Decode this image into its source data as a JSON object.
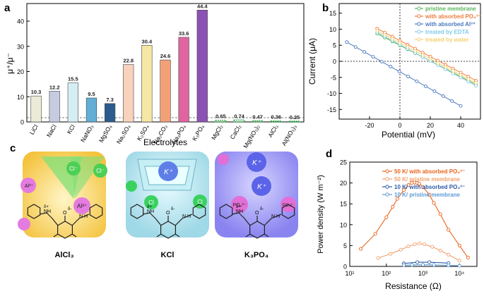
{
  "figure": {
    "labels": {
      "a": "a",
      "b": "b",
      "c": "c",
      "d": "d"
    }
  },
  "panel_c": {
    "tiles": [
      {
        "caption": "AlCl₃",
        "labels": [
          "Cl⁻",
          "Cl⁻",
          "Al³⁺",
          "Al³⁺"
        ]
      },
      {
        "caption": "KCl",
        "labels": [
          "K⁺",
          "Cl",
          "Cl"
        ]
      },
      {
        "caption": "K₃PO₄",
        "labels": [
          "K⁺",
          "K⁺",
          "PO₄³⁻",
          "PO₄³⁻"
        ]
      }
    ],
    "molecule": {
      "delta_plus": "δ+",
      "delta_minus": "δ-",
      "nh": "NH",
      "n": "N",
      "h": "H",
      "o": "O"
    }
  },
  "chart_data": [
    {
      "type": "bar",
      "title": "",
      "xlabel": "Electrolytes",
      "ylabel": "μ⁺/μ⁻",
      "ylim": [
        0,
        47
      ],
      "yticks": [
        0,
        10,
        20,
        30,
        40
      ],
      "reference_line": 1,
      "categories": [
        "LiCl",
        "NaCl",
        "KCl",
        "NaNO₃",
        "MgSO₄",
        "Na₂SO₄",
        "K₂SO₄",
        "Na₂CO₃",
        "Na₃PO₄",
        "K₃PO₄",
        "MgCl₂",
        "CaCl₂",
        "Mg(NO₃)₂",
        "AlCl₃",
        "Al(NO₃)₃"
      ],
      "values": [
        10.3,
        12.2,
        15.5,
        9.5,
        7.3,
        22.8,
        30.4,
        24.6,
        33.6,
        44.4,
        0.65,
        0.74,
        0.47,
        0.36,
        0.25
      ],
      "value_labels": [
        "10.3",
        "12.2",
        "15.5",
        "9.5",
        "7.3",
        "22.8",
        "30.4",
        "24.6",
        "33.6",
        "44.4",
        "0.65",
        "0.74",
        "0.47",
        "0.36",
        "0.25"
      ],
      "colors": [
        "#ecebd8",
        "#c7cbe1",
        "#d5eef4",
        "#62aed6",
        "#2d5b8e",
        "#f9d2bd",
        "#f6e7a4",
        "#f2a177",
        "#e064a0",
        "#8c52b3",
        "#3ea753",
        "#3ea753",
        "#3ea753",
        "#3ea753",
        "#3ea753"
      ]
    },
    {
      "type": "line",
      "title": "",
      "xlabel": "Potential (mV)",
      "ylabel": "Current (μA)",
      "xlim": [
        -40,
        53
      ],
      "ylim": [
        -18,
        18
      ],
      "xticks": [
        -20,
        0,
        20,
        40
      ],
      "yticks": [
        -15,
        -10,
        -5,
        0,
        5,
        10,
        15
      ],
      "legend": "top-right",
      "series": [
        {
          "name": "pristine membrane",
          "color": "#5ab55a",
          "x": [
            -15,
            50
          ],
          "y": [
            8.6,
            -7.2
          ]
        },
        {
          "name": "with absorbed PO₄³⁻",
          "color": "#ef7d3e",
          "x": [
            -15,
            50
          ],
          "y": [
            10.2,
            -6.0
          ]
        },
        {
          "name": "with absorbed Al³⁺",
          "color": "#4a78c0",
          "x": [
            -35,
            40
          ],
          "y": [
            6.0,
            -13.9
          ]
        },
        {
          "name": "treated by EDTA",
          "color": "#7fcce8",
          "x": [
            -15,
            50
          ],
          "y": [
            9.0,
            -7.6
          ]
        },
        {
          "name": "treated by water",
          "color": "#f5d070",
          "x": [
            -15,
            50
          ],
          "y": [
            9.5,
            -6.8
          ]
        }
      ]
    },
    {
      "type": "line",
      "title": "",
      "xlabel": "Resistance (Ω)",
      "ylabel": "Power density (W m⁻²)",
      "xscale": "log",
      "xlim": [
        10,
        30000
      ],
      "ylim": [
        0,
        25
      ],
      "xticks": [
        "10¹",
        "10²",
        "10³",
        "10⁴"
      ],
      "yticks": [
        0,
        5,
        10,
        15,
        20,
        25
      ],
      "legend": "top-right",
      "series": [
        {
          "name": "50 K/ with absorbed PO₄³⁻",
          "color": "#e8631a",
          "x": [
            20,
            50,
            100,
            150,
            200,
            300,
            400,
            500,
            600,
            700,
            800,
            1000,
            1500,
            2000,
            3000,
            5000,
            10000,
            17000
          ],
          "y": [
            4.2,
            7.8,
            11.8,
            14.3,
            16.2,
            18.3,
            19.5,
            20.0,
            20.1,
            20.0,
            19.8,
            19.0,
            17.2,
            15.2,
            12.5,
            8.8,
            5.0,
            2.1
          ]
        },
        {
          "name": "50 K/ pristine membrane",
          "color": "#f0a06a",
          "x": [
            60,
            130,
            250,
            400,
            600,
            800,
            1100,
            1800,
            3000,
            5000,
            10000
          ],
          "y": [
            2.0,
            3.0,
            4.0,
            4.8,
            5.3,
            5.5,
            5.3,
            4.7,
            3.8,
            2.8,
            1.4
          ]
        },
        {
          "name": "10 K/ with absorbed PO₄³⁻",
          "color": "#2c5aa8",
          "x": [
            300,
            700,
            1500,
            5000
          ],
          "y": [
            0.7,
            1.0,
            1.0,
            0.8
          ]
        },
        {
          "name": "10 K/ pristine membrane",
          "color": "#5b9ad6",
          "x": [
            300,
            500,
            1000,
            2000,
            5000,
            10000
          ],
          "y": [
            0.3,
            0.35,
            0.4,
            0.35,
            0.25,
            0.15
          ]
        }
      ]
    }
  ]
}
